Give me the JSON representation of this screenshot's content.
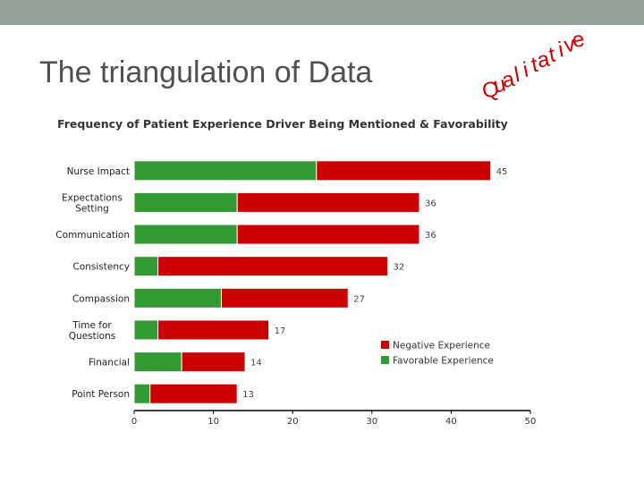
{
  "slide": {
    "title": "The triangulation of Data",
    "arc_word": "Qualitative"
  },
  "colors": {
    "band": "#97a39a",
    "title": "#505050",
    "negative": "#cc0000",
    "favorable": "#339933",
    "arc_word": "#cc0000"
  },
  "chart_data": {
    "type": "bar",
    "orientation": "horizontal",
    "stacked": true,
    "title": "Frequency of Patient Experience Driver Being Mentioned & Favorability",
    "categories": [
      [
        "Nurse Impact"
      ],
      [
        "Expectations",
        "Setting"
      ],
      [
        "Communication"
      ],
      [
        "Consistency"
      ],
      [
        "Compassion"
      ],
      [
        "Time for",
        "Questions"
      ],
      [
        "Financial"
      ],
      [
        "Point Person"
      ]
    ],
    "series": [
      {
        "name": "Favorable Experience",
        "values": [
          23,
          13,
          13,
          3,
          11,
          3,
          6,
          2
        ]
      },
      {
        "name": "Negative Experience",
        "values": [
          22,
          23,
          23,
          29,
          16,
          14,
          8,
          11
        ]
      }
    ],
    "totals": [
      45,
      36,
      36,
      32,
      27,
      17,
      14,
      13
    ],
    "xlim": [
      0,
      50
    ],
    "xticks": [
      0,
      10,
      20,
      30,
      40,
      50
    ],
    "legend": [
      {
        "name": "Negative Experience",
        "color": "#cc0000"
      },
      {
        "name": "Favorable Experience",
        "color": "#339933"
      }
    ],
    "legend_position": "right"
  }
}
